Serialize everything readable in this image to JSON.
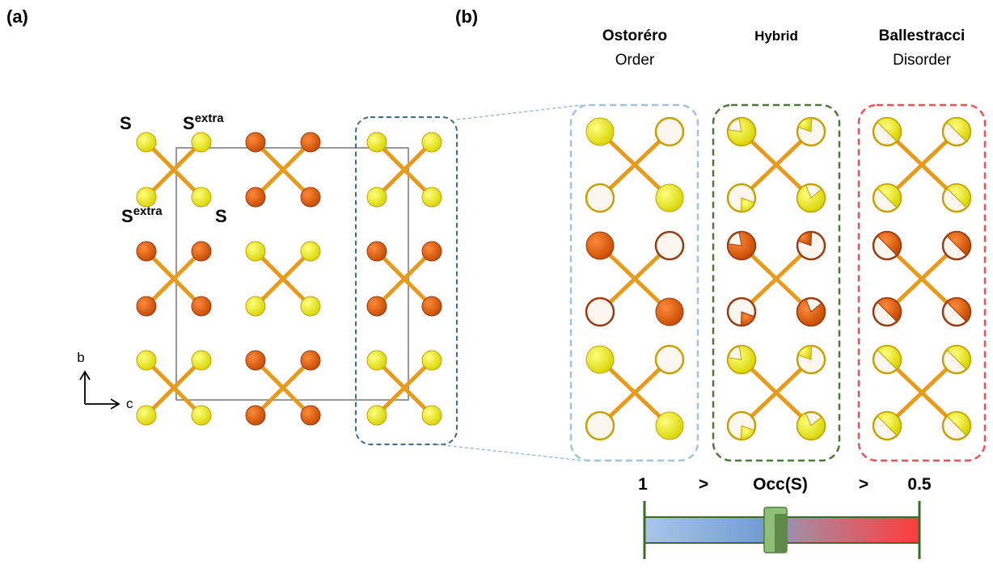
{
  "panel_a": {
    "label": "(a)",
    "atom_labels": [
      {
        "base": "S"
      },
      {
        "base": "S",
        "sup": "extra"
      },
      {
        "base": "S",
        "sup": "extra"
      },
      {
        "base": "S"
      }
    ],
    "axes": {
      "vertical": "b",
      "horizontal": "c"
    }
  },
  "panel_b": {
    "label": "(b)",
    "columns": [
      {
        "title": "Ostoréro",
        "subtitle": "Order"
      },
      {
        "title": "Hybrid"
      },
      {
        "title": "Ballestracci",
        "subtitle": "Disorder"
      }
    ],
    "scale": {
      "left": "1",
      "gt1": ">",
      "middle": "Occ(S)",
      "gt2": ">",
      "right": "0.5"
    }
  }
}
